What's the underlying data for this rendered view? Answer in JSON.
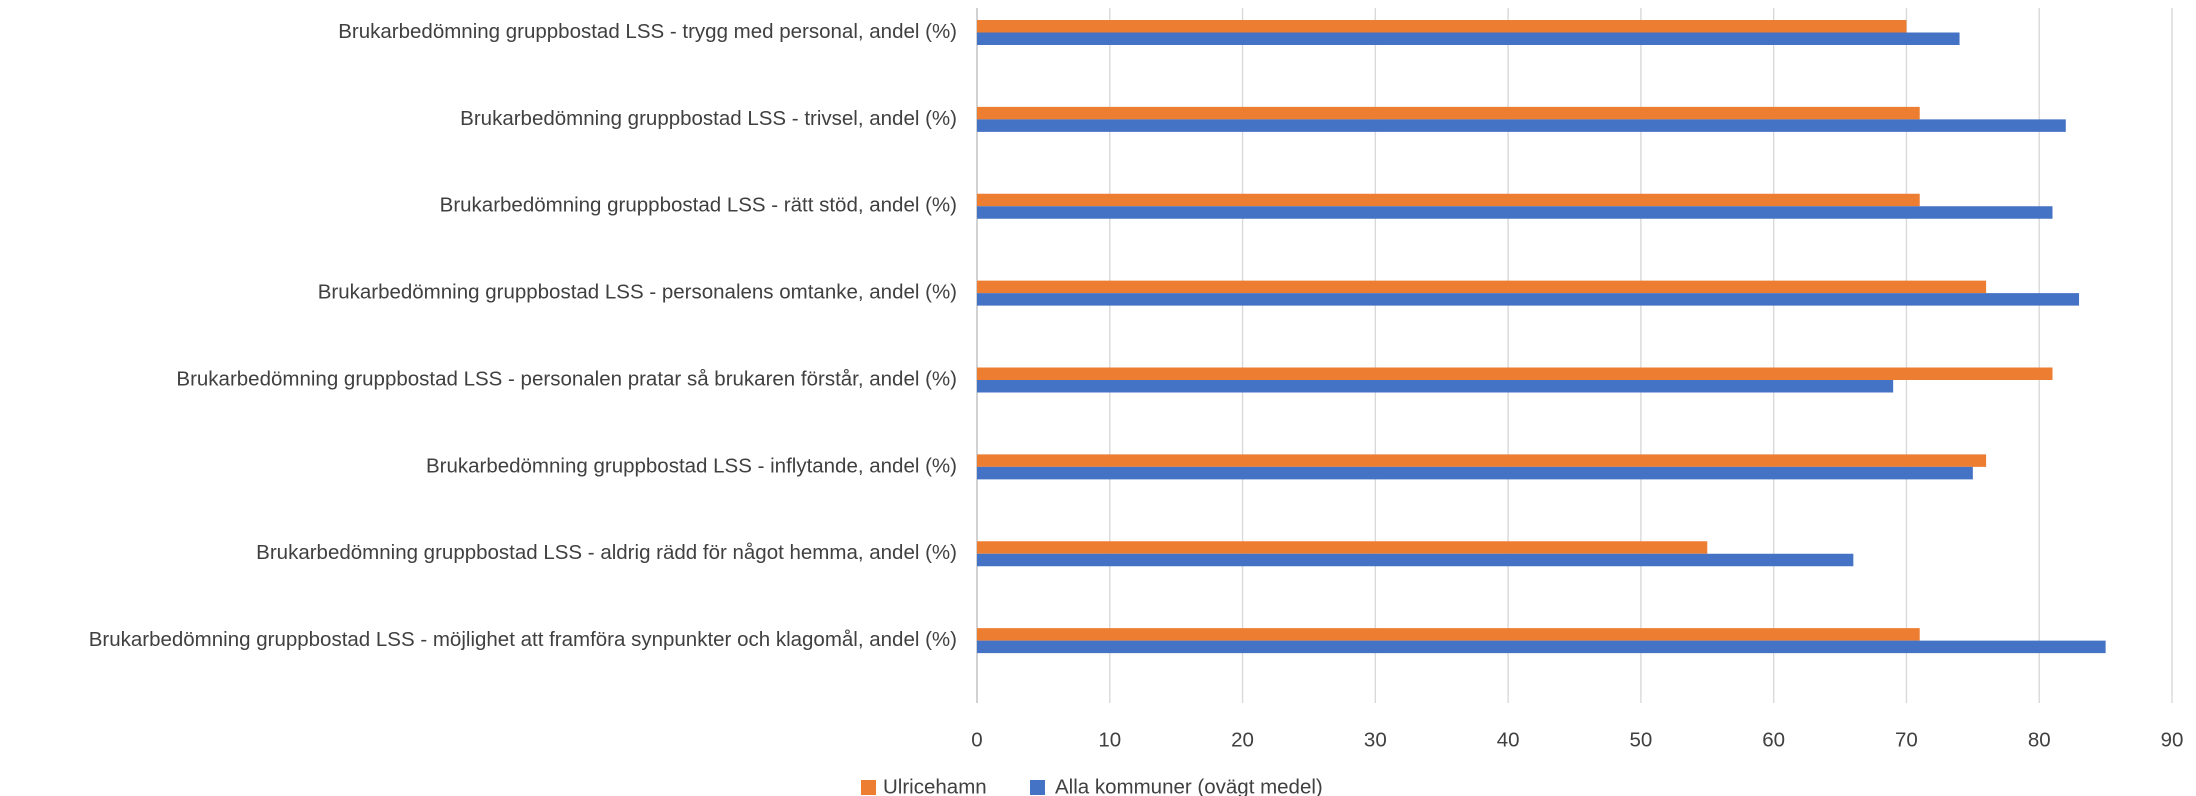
{
  "chart_data": {
    "type": "bar",
    "orientation": "horizontal",
    "categories": [
      "Brukarbedömning gruppbostad LSS  - trygg med personal, andel (%)",
      "Brukarbedömning gruppbostad LSS  - trivsel, andel (%)",
      "Brukarbedömning gruppbostad LSS  - rätt stöd, andel (%)",
      "Brukarbedömning gruppbostad LSS  - personalens omtanke, andel (%)",
      "Brukarbedömning gruppbostad LSS  - personalen pratar så brukaren förstår, andel (%)",
      "Brukarbedömning gruppbostad LSS  - inflytande, andel (%)",
      "Brukarbedömning gruppbostad LSS  - aldrig rädd för något hemma, andel (%)",
      "Brukarbedömning gruppbostad LSS - möjlighet att framföra  synpunkter och klagomål, andel (%)"
    ],
    "series": [
      {
        "name": "Ulricehamn",
        "color": "#ED7D31",
        "values": [
          70,
          71,
          71,
          76,
          81,
          76,
          55,
          71
        ]
      },
      {
        "name": "Alla kommuner (ovägt medel)",
        "color": "#4472C4",
        "values": [
          74,
          82,
          81,
          83,
          69,
          75,
          66,
          85
        ]
      }
    ],
    "xlim": [
      0,
      90
    ],
    "xticks": [
      "0",
      "10",
      "20",
      "30",
      "40",
      "50",
      "60",
      "70",
      "80",
      "90"
    ],
    "grid": true,
    "legend_position": "bottom"
  }
}
